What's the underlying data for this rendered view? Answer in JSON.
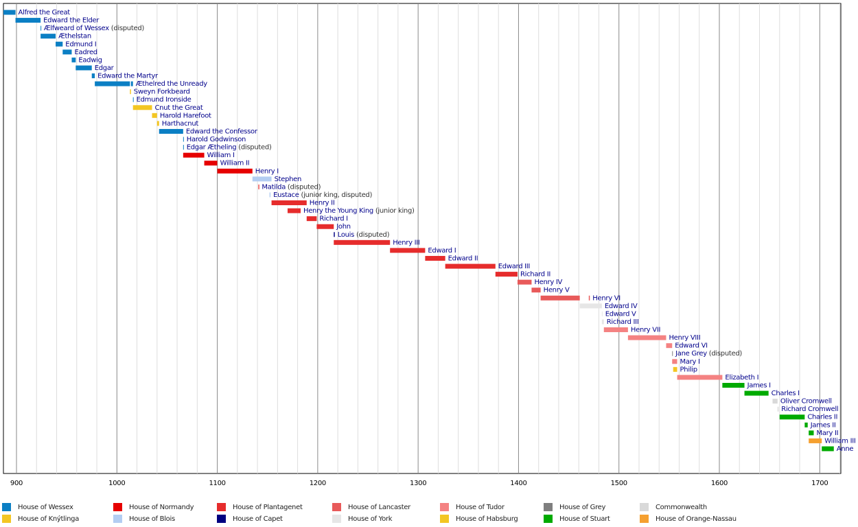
{
  "chart_data": {
    "type": "timeline",
    "xlim": [
      887,
      1721
    ],
    "xticks": [
      900,
      1000,
      1100,
      1200,
      1300,
      1400,
      1500,
      1600,
      1700
    ],
    "xminor": [
      920,
      940,
      960,
      980,
      1020,
      1040,
      1060,
      1080,
      1120,
      1140,
      1160,
      1180,
      1220,
      1240,
      1260,
      1280,
      1320,
      1340,
      1360,
      1380,
      1420,
      1440,
      1460,
      1480,
      1520,
      1540,
      1560,
      1580,
      1620,
      1640,
      1660,
      1680,
      1720
    ],
    "grid": true,
    "houses": [
      {
        "name": "House of Wessex",
        "color": "#0b7fc4"
      },
      {
        "name": "House of Knýtlinga",
        "color": "#f3c623"
      },
      {
        "name": "House of Normandy",
        "color": "#e60000"
      },
      {
        "name": "House of Blois",
        "color": "#b3cdf2"
      },
      {
        "name": "House of Plantagenet",
        "color": "#e62c2c"
      },
      {
        "name": "House of Capet",
        "color": "#000080"
      },
      {
        "name": "House of Lancaster",
        "color": "#e85a5a"
      },
      {
        "name": "House of York",
        "color": "#e6e6e6"
      },
      {
        "name": "House of Tudor",
        "color": "#f48282"
      },
      {
        "name": "House of Habsburg",
        "color": "#f3c623"
      },
      {
        "name": "House of Grey",
        "color": "#7f7f7f"
      },
      {
        "name": "House of Stuart",
        "color": "#00aa00"
      },
      {
        "name": "Commonwealth",
        "color": "#d9d9d9"
      },
      {
        "name": "House of Orange-Nassau",
        "color": "#f5a030"
      }
    ],
    "reigns": [
      {
        "name": "Alfred the Great",
        "house": "House of Wessex",
        "spans": [
          [
            871,
            899
          ]
        ]
      },
      {
        "name": "Edward the Elder",
        "house": "House of Wessex",
        "spans": [
          [
            899,
            924
          ]
        ]
      },
      {
        "name": "Ælfweard of Wessex",
        "note": "(disputed)",
        "house": "House of Wessex",
        "spans": [
          [
            924,
            924.5
          ]
        ]
      },
      {
        "name": "Æthelstan",
        "house": "House of Wessex",
        "spans": [
          [
            924,
            939
          ]
        ]
      },
      {
        "name": "Edmund I",
        "house": "House of Wessex",
        "spans": [
          [
            939,
            946
          ]
        ]
      },
      {
        "name": "Eadred",
        "house": "House of Wessex",
        "spans": [
          [
            946,
            955
          ]
        ]
      },
      {
        "name": "Eadwig",
        "house": "House of Wessex",
        "spans": [
          [
            955,
            959
          ]
        ]
      },
      {
        "name": "Edgar",
        "house": "House of Wessex",
        "spans": [
          [
            959,
            975
          ]
        ]
      },
      {
        "name": "Edward the Martyr",
        "house": "House of Wessex",
        "spans": [
          [
            975,
            978
          ]
        ]
      },
      {
        "name": "Æthelred the Unready",
        "house": "House of Wessex",
        "spans": [
          [
            978,
            1013
          ],
          [
            1014,
            1016
          ]
        ]
      },
      {
        "name": "Sweyn Forkbeard",
        "house": "House of Knýtlinga",
        "spans": [
          [
            1013,
            1014
          ]
        ]
      },
      {
        "name": "Edmund Ironside",
        "house": "House of Wessex",
        "spans": [
          [
            1016,
            1016.6
          ]
        ]
      },
      {
        "name": "Cnut the Great",
        "house": "House of Knýtlinga",
        "spans": [
          [
            1016,
            1035
          ]
        ]
      },
      {
        "name": "Harold Harefoot",
        "house": "House of Knýtlinga",
        "spans": [
          [
            1035,
            1040
          ]
        ]
      },
      {
        "name": "Harthacnut",
        "house": "House of Knýtlinga",
        "spans": [
          [
            1040,
            1042
          ]
        ]
      },
      {
        "name": "Edward the Confessor",
        "house": "House of Wessex",
        "spans": [
          [
            1042,
            1066
          ]
        ]
      },
      {
        "name": "Harold Godwinson",
        "house": "House of Wessex",
        "spans": [
          [
            1066,
            1066.6
          ]
        ]
      },
      {
        "name": "Edgar Ætheling",
        "note": "(disputed)",
        "house": "House of Wessex",
        "spans": [
          [
            1066,
            1066.6
          ]
        ]
      },
      {
        "name": "William I",
        "house": "House of Normandy",
        "spans": [
          [
            1066,
            1087
          ]
        ]
      },
      {
        "name": "William II",
        "house": "House of Normandy",
        "spans": [
          [
            1087,
            1100
          ]
        ]
      },
      {
        "name": "Henry I",
        "house": "House of Normandy",
        "spans": [
          [
            1100,
            1135
          ]
        ]
      },
      {
        "name": "Stephen",
        "house": "House of Blois",
        "spans": [
          [
            1135,
            1154
          ]
        ]
      },
      {
        "name": "Matilda",
        "note": "(disputed)",
        "house": "House of Normandy",
        "spans": [
          [
            1141,
            1141.6
          ]
        ]
      },
      {
        "name": "Eustace",
        "note": "(junior king, disputed)",
        "house": "House of Blois",
        "spans": [
          [
            1152,
            1153
          ]
        ]
      },
      {
        "name": "Henry II",
        "house": "House of Plantagenet",
        "spans": [
          [
            1154,
            1189
          ]
        ]
      },
      {
        "name": "Henry the Young King",
        "note": "(junior king)",
        "house": "House of Plantagenet",
        "spans": [
          [
            1170,
            1183
          ]
        ]
      },
      {
        "name": "Richard I",
        "house": "House of Plantagenet",
        "spans": [
          [
            1189,
            1199
          ]
        ]
      },
      {
        "name": "John",
        "house": "House of Plantagenet",
        "spans": [
          [
            1199,
            1216
          ]
        ]
      },
      {
        "name": "Louis",
        "note": "(disputed)",
        "house": "House of Capet",
        "spans": [
          [
            1216,
            1217
          ]
        ]
      },
      {
        "name": "Henry III",
        "house": "House of Plantagenet",
        "spans": [
          [
            1216,
            1272
          ]
        ]
      },
      {
        "name": "Edward I",
        "house": "House of Plantagenet",
        "spans": [
          [
            1272,
            1307
          ]
        ]
      },
      {
        "name": "Edward II",
        "house": "House of Plantagenet",
        "spans": [
          [
            1307,
            1327
          ]
        ]
      },
      {
        "name": "Edward III",
        "house": "House of Plantagenet",
        "spans": [
          [
            1327,
            1377
          ]
        ]
      },
      {
        "name": "Richard II",
        "house": "House of Plantagenet",
        "spans": [
          [
            1377,
            1399
          ]
        ]
      },
      {
        "name": "Henry IV",
        "house": "House of Lancaster",
        "spans": [
          [
            1399,
            1413
          ]
        ]
      },
      {
        "name": "Henry V",
        "house": "House of Lancaster",
        "spans": [
          [
            1413,
            1422
          ]
        ]
      },
      {
        "name": "Henry VI",
        "house": "House of Lancaster",
        "spans": [
          [
            1422,
            1461
          ],
          [
            1470,
            1471
          ]
        ]
      },
      {
        "name": "Edward IV",
        "house": "House of York",
        "spans": [
          [
            1461,
            1483
          ]
        ]
      },
      {
        "name": "Edward V",
        "house": "House of York",
        "spans": [
          [
            1483,
            1483.6
          ]
        ]
      },
      {
        "name": "Richard III",
        "house": "House of York",
        "spans": [
          [
            1483,
            1485
          ]
        ]
      },
      {
        "name": "Henry VII",
        "house": "House of Tudor",
        "spans": [
          [
            1485,
            1509
          ]
        ]
      },
      {
        "name": "Henry VIII",
        "house": "House of Tudor",
        "spans": [
          [
            1509,
            1547
          ]
        ]
      },
      {
        "name": "Edward VI",
        "house": "House of Tudor",
        "spans": [
          [
            1547,
            1553
          ]
        ]
      },
      {
        "name": "Jane Grey",
        "note": "(disputed)",
        "house": "House of Grey",
        "spans": [
          [
            1553,
            1553.6
          ]
        ]
      },
      {
        "name": "Mary I",
        "house": "House of Tudor",
        "spans": [
          [
            1553,
            1558
          ]
        ]
      },
      {
        "name": "Philip",
        "house": "House of Habsburg",
        "spans": [
          [
            1554,
            1558
          ]
        ]
      },
      {
        "name": "Elizabeth I",
        "house": "House of Tudor",
        "spans": [
          [
            1558,
            1603
          ]
        ]
      },
      {
        "name": "James I",
        "house": "House of Stuart",
        "spans": [
          [
            1603,
            1625
          ]
        ]
      },
      {
        "name": "Charles I",
        "house": "House of Stuart",
        "spans": [
          [
            1625,
            1649
          ]
        ]
      },
      {
        "name": "Oliver Cromwell",
        "house": "Commonwealth",
        "spans": [
          [
            1653,
            1658
          ]
        ]
      },
      {
        "name": "Richard Cromwell",
        "house": "Commonwealth",
        "spans": [
          [
            1658,
            1659
          ]
        ]
      },
      {
        "name": "Charles II",
        "house": "House of Stuart",
        "spans": [
          [
            1660,
            1685
          ]
        ]
      },
      {
        "name": "James II",
        "house": "House of Stuart",
        "spans": [
          [
            1685,
            1688
          ]
        ]
      },
      {
        "name": "Mary II",
        "house": "House of Stuart",
        "spans": [
          [
            1689,
            1694
          ]
        ]
      },
      {
        "name": "William III",
        "house": "House of Orange-Nassau",
        "spans": [
          [
            1689,
            1702
          ]
        ]
      },
      {
        "name": "Anne",
        "house": "House of Stuart",
        "spans": [
          [
            1702,
            1714
          ]
        ]
      }
    ]
  }
}
